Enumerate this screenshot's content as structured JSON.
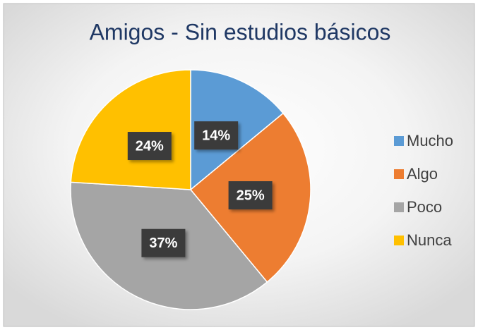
{
  "chart_data": {
    "type": "pie",
    "title": "Amigos - Sin estudios básicos",
    "categories": [
      "Mucho",
      "Algo",
      "Poco",
      "Nunca"
    ],
    "values": [
      14,
      25,
      37,
      24
    ],
    "value_labels": [
      "14%",
      "25%",
      "37%",
      "24%"
    ],
    "colors": [
      "#5b9bd5",
      "#ed7d31",
      "#a5a5a5",
      "#ffc000"
    ],
    "legend": "right"
  }
}
